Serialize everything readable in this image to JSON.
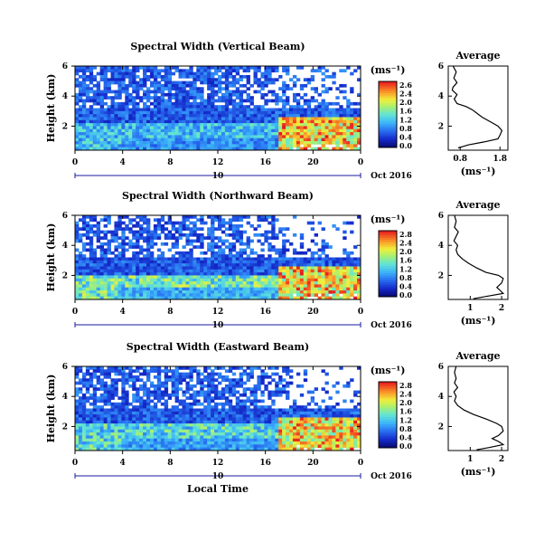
{
  "chart_data": [
    {
      "type": "heatmap",
      "title": "Spectral Width (Vertical Beam)",
      "ylabel": "Height (km)",
      "yticks": [
        "6",
        "4",
        "2"
      ],
      "xticks": [
        "0",
        "4",
        "8",
        "12",
        "16",
        "20",
        "0"
      ],
      "ylim": [
        0.4,
        6
      ],
      "xlim": [
        0,
        24
      ],
      "day_label": "10",
      "date_label": "Oct 2016",
      "colorbar": {
        "unit_label": "(ms⁻¹)",
        "min": 0,
        "max": 2.8,
        "ticks": [
          "2.6",
          "2.4",
          "2.0",
          "1.6",
          "1.2",
          "0.8",
          "0.4",
          "0.0"
        ]
      },
      "pattern": {
        "upper_min": 0.3,
        "upper_max": 0.9,
        "upper_gaps": 0.22,
        "lower_start": 2.3,
        "lower_min": 0.7,
        "lower_max": 1.5,
        "late_hot": 2.4
      },
      "profile": {
        "title": "Average",
        "xlabel": "(ms⁻¹)",
        "xticks": [
          "0.8",
          "1.8"
        ],
        "xlim": [
          0.5,
          2.0
        ],
        "yticks": [
          "6",
          "4",
          "2"
        ],
        "ylim": [
          0.4,
          6
        ],
        "points": [
          [
            0.62,
            6.0
          ],
          [
            0.7,
            5.6
          ],
          [
            0.64,
            5.2
          ],
          [
            0.72,
            4.9
          ],
          [
            0.62,
            4.6
          ],
          [
            0.6,
            4.4
          ],
          [
            0.72,
            4.1
          ],
          [
            0.65,
            3.8
          ],
          [
            0.72,
            3.5
          ],
          [
            0.95,
            3.3
          ],
          [
            1.1,
            3.1
          ],
          [
            1.2,
            2.9
          ],
          [
            1.35,
            2.6
          ],
          [
            1.55,
            2.3
          ],
          [
            1.75,
            2.0
          ],
          [
            1.85,
            1.7
          ],
          [
            1.8,
            1.4
          ],
          [
            1.75,
            1.15
          ],
          [
            1.4,
            0.95
          ],
          [
            1.0,
            0.75
          ],
          [
            0.75,
            0.55
          ]
        ]
      }
    },
    {
      "type": "heatmap",
      "title": "Spectral Width (Northward Beam)",
      "ylabel": "Height (km)",
      "yticks": [
        "6",
        "4",
        "2"
      ],
      "xticks": [
        "0",
        "4",
        "8",
        "12",
        "16",
        "20",
        "0"
      ],
      "ylim": [
        0.4,
        6
      ],
      "xlim": [
        0,
        24
      ],
      "day_label": "10",
      "date_label": "Oct 2016",
      "colorbar": {
        "unit_label": "(ms⁻¹)",
        "min": 0,
        "max": 2.8,
        "ticks": [
          "2.8",
          "2.4",
          "2.0",
          "1.6",
          "1.2",
          "0.8",
          "0.4",
          "0.0"
        ]
      },
      "pattern": {
        "upper_min": 0.3,
        "upper_max": 0.9,
        "upper_gaps": 0.35,
        "lower_start": 2.1,
        "lower_min": 0.9,
        "lower_max": 2.0,
        "late_hot": 2.4
      },
      "profile": {
        "title": "Average",
        "xlabel": "(ms⁻¹)",
        "xticks": [
          "1",
          "2"
        ],
        "xlim": [
          0.3,
          2.2
        ],
        "yticks": [
          "6",
          "4",
          "2"
        ],
        "ylim": [
          0.4,
          6
        ],
        "points": [
          [
            0.5,
            6.0
          ],
          [
            0.55,
            5.6
          ],
          [
            0.5,
            5.2
          ],
          [
            0.62,
            4.9
          ],
          [
            0.55,
            4.6
          ],
          [
            0.48,
            4.3
          ],
          [
            0.6,
            4.0
          ],
          [
            0.55,
            3.7
          ],
          [
            0.6,
            3.4
          ],
          [
            0.75,
            3.1
          ],
          [
            0.95,
            2.8
          ],
          [
            1.2,
            2.5
          ],
          [
            1.5,
            2.2
          ],
          [
            1.9,
            2.0
          ],
          [
            2.05,
            1.8
          ],
          [
            2.0,
            1.5
          ],
          [
            1.85,
            1.2
          ],
          [
            1.95,
            1.0
          ],
          [
            2.05,
            0.8
          ],
          [
            1.5,
            0.6
          ],
          [
            1.1,
            0.45
          ]
        ]
      }
    },
    {
      "type": "heatmap",
      "title": "Spectral Width (Eastward Beam)",
      "ylabel": "Height (km)",
      "yticks": [
        "6",
        "4",
        "2"
      ],
      "xticks": [
        "0",
        "4",
        "8",
        "12",
        "16",
        "20",
        "0"
      ],
      "ylim": [
        0.4,
        6
      ],
      "xlim": [
        0,
        24
      ],
      "day_label": "10",
      "date_label": "Oct 2016",
      "xlabel": "Local Time",
      "colorbar": {
        "unit_label": "(ms⁻¹)",
        "min": 0,
        "max": 2.8,
        "ticks": [
          "2.8",
          "2.4",
          "2.0",
          "1.6",
          "1.2",
          "0.8",
          "0.4",
          "0.0"
        ]
      },
      "pattern": {
        "upper_min": 0.3,
        "upper_max": 0.9,
        "upper_gaps": 0.3,
        "lower_start": 2.2,
        "lower_min": 0.8,
        "lower_max": 1.8,
        "late_hot": 2.4
      },
      "profile": {
        "title": "Average",
        "xlabel": "(ms⁻¹)",
        "xticks": [
          "1",
          "2"
        ],
        "xlim": [
          0.3,
          2.2
        ],
        "yticks": [
          "6",
          "4",
          "2"
        ],
        "ylim": [
          0.4,
          6
        ],
        "points": [
          [
            0.55,
            6.0
          ],
          [
            0.5,
            5.6
          ],
          [
            0.55,
            5.2
          ],
          [
            0.5,
            4.9
          ],
          [
            0.6,
            4.6
          ],
          [
            0.48,
            4.3
          ],
          [
            0.55,
            4.0
          ],
          [
            0.5,
            3.7
          ],
          [
            0.6,
            3.4
          ],
          [
            0.8,
            3.1
          ],
          [
            1.1,
            2.8
          ],
          [
            1.5,
            2.5
          ],
          [
            1.85,
            2.2
          ],
          [
            2.0,
            2.0
          ],
          [
            2.05,
            1.7
          ],
          [
            1.9,
            1.4
          ],
          [
            1.7,
            1.2
          ],
          [
            1.9,
            1.0
          ],
          [
            2.05,
            0.8
          ],
          [
            1.6,
            0.6
          ],
          [
            1.2,
            0.45
          ]
        ]
      }
    }
  ]
}
